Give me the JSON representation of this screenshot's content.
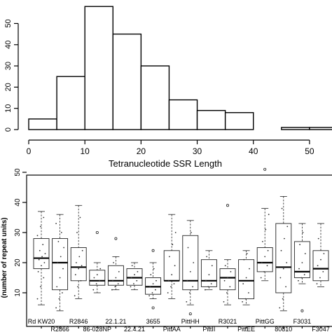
{
  "chart_data": [
    {
      "type": "bar",
      "title": "",
      "xlabel": "Tetranucleotide SSR Length",
      "ylabel": "",
      "bins": [
        {
          "x0": 0,
          "x1": 5,
          "count": 5
        },
        {
          "x0": 5,
          "x1": 10,
          "count": 25
        },
        {
          "x0": 10,
          "x1": 15,
          "count": 58
        },
        {
          "x0": 15,
          "x1": 20,
          "count": 45
        },
        {
          "x0": 20,
          "x1": 25,
          "count": 30
        },
        {
          "x0": 25,
          "x1": 30,
          "count": 14
        },
        {
          "x0": 30,
          "x1": 35,
          "count": 9
        },
        {
          "x0": 35,
          "x1": 40,
          "count": 8
        },
        {
          "x0": 40,
          "x1": 45,
          "count": 0
        },
        {
          "x0": 45,
          "x1": 50,
          "count": 1
        },
        {
          "x0": 50,
          "x1": 55,
          "count": 1
        }
      ],
      "xlim": [
        0,
        55
      ],
      "ylim": [
        0,
        60
      ],
      "x_ticks": [
        "0",
        "10",
        "20",
        "30",
        "40",
        "50"
      ],
      "y_ticks": [
        "0",
        "10",
        "20",
        "30",
        "40",
        "50"
      ],
      "grid": false
    },
    {
      "type": "box",
      "title": "",
      "xlabel": "",
      "ylabel": "(number of repeat units)",
      "ylim": [
        2,
        55
      ],
      "y_ticks": [
        "10",
        "20",
        "30",
        "40",
        "50"
      ],
      "categories": [
        "Rd KW20",
        "R2866",
        "R2846",
        "86-028NP",
        "22.1.21",
        "22.4.21",
        "3655",
        "PittAA",
        "PittHH",
        "PittII",
        "R3021",
        "PittEE",
        "PittGG",
        "80810",
        "F3031",
        "F3047"
      ],
      "boxes": [
        {
          "min": 6,
          "q1": 18,
          "median": 21.5,
          "q3": 28,
          "max": 37,
          "outliers": [],
          "points": [
            8,
            12,
            15,
            17,
            19,
            20,
            21,
            22,
            23,
            24,
            26,
            29,
            32,
            35
          ]
        },
        {
          "min": 4,
          "q1": 11,
          "median": 20,
          "q3": 28,
          "max": 36,
          "outliers": [],
          "points": [
            5,
            8,
            10,
            12,
            15,
            18,
            20,
            22,
            25,
            27,
            30,
            33
          ]
        },
        {
          "min": 8,
          "q1": 14,
          "median": 18.5,
          "q3": 25,
          "max": 39,
          "outliers": [],
          "points": [
            9,
            12,
            14,
            16,
            18,
            19,
            20,
            22,
            24,
            30,
            35
          ]
        },
        {
          "min": 10,
          "q1": 12.5,
          "median": 14,
          "q3": 17.5,
          "max": 20,
          "outliers": [
            30
          ],
          "points": [
            11,
            13,
            14,
            15,
            16,
            18
          ]
        },
        {
          "min": 11,
          "q1": 12.5,
          "median": 14,
          "q3": 19,
          "max": 22,
          "outliers": [
            28
          ],
          "points": [
            11,
            12,
            13,
            14,
            15,
            17,
            20
          ]
        },
        {
          "min": 11,
          "q1": 12.5,
          "median": 15,
          "q3": 18,
          "max": 20,
          "outliers": [],
          "points": [
            12,
            13,
            14,
            15,
            16,
            17,
            19
          ]
        },
        {
          "min": 8,
          "q1": 9.5,
          "median": 12,
          "q3": 15,
          "max": 20,
          "outliers": [
            24,
            5
          ],
          "points": [
            9,
            10,
            11,
            12,
            13,
            14,
            16,
            18
          ]
        },
        {
          "min": 8,
          "q1": 14,
          "median": 14,
          "q3": 24,
          "max": 36,
          "outliers": [],
          "points": [
            10,
            12,
            13,
            14,
            16,
            19,
            22,
            26,
            30
          ]
        },
        {
          "min": 6,
          "q1": 11,
          "median": 14,
          "q3": 29,
          "max": 34,
          "outliers": [
            3
          ],
          "points": [
            7,
            10,
            12,
            14,
            17,
            20,
            25,
            30
          ]
        },
        {
          "min": 11,
          "q1": 12,
          "median": 14,
          "q3": 21,
          "max": 24,
          "outliers": [],
          "points": [
            11,
            12,
            13,
            14,
            16,
            19,
            22
          ]
        },
        {
          "min": 6,
          "q1": 11,
          "median": 15,
          "q3": 18,
          "max": 21,
          "outliers": [
            39
          ],
          "points": [
            7,
            10,
            12,
            14,
            15,
            17,
            19
          ]
        },
        {
          "min": 6,
          "q1": 8,
          "median": 14,
          "q3": 21,
          "max": 24,
          "outliers": [],
          "points": [
            7,
            8,
            10,
            13,
            15,
            18,
            21,
            23
          ]
        },
        {
          "min": 14,
          "q1": 17,
          "median": 20,
          "q3": 25,
          "max": 38,
          "outliers": [
            51
          ],
          "points": [
            15,
            17,
            19,
            20,
            22,
            24,
            27,
            31,
            36
          ]
        },
        {
          "min": 4,
          "q1": 10,
          "median": 18.5,
          "q3": 33,
          "max": 42,
          "outliers": [],
          "points": [
            5,
            8,
            12,
            15,
            18,
            20,
            24,
            28,
            32,
            38
          ]
        },
        {
          "min": 13,
          "q1": 15,
          "median": 17,
          "q3": 27,
          "max": 33,
          "outliers": [
            4
          ],
          "points": [
            14,
            15,
            16,
            18,
            20,
            23,
            26,
            30
          ]
        },
        {
          "min": 12,
          "q1": 14,
          "median": 18,
          "q3": 24,
          "max": 33,
          "outliers": [],
          "points": [
            13,
            15,
            17,
            19,
            21,
            23,
            28
          ]
        }
      ]
    }
  ]
}
